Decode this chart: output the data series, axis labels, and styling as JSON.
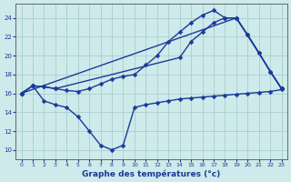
{
  "line_top": {
    "x": [
      0,
      1,
      2,
      3,
      4,
      5,
      6,
      7,
      8,
      9,
      10,
      11,
      12,
      13,
      14,
      15,
      16,
      17,
      18,
      19,
      20,
      21,
      22,
      23
    ],
    "y": [
      16.0,
      16.8,
      16.7,
      16.5,
      16.3,
      16.2,
      16.5,
      17.0,
      17.5,
      17.8,
      18.0,
      19.0,
      20.0,
      21.5,
      22.5,
      23.5,
      24.3,
      24.8,
      24.0,
      24.0,
      22.2,
      20.3,
      18.3,
      16.5
    ]
  },
  "line_mid": {
    "x": [
      0,
      1,
      2,
      3,
      14,
      15,
      16,
      17,
      18,
      19,
      20,
      21,
      22,
      23
    ],
    "y": [
      16.0,
      16.8,
      16.7,
      16.5,
      19.8,
      21.5,
      22.5,
      23.5,
      24.0,
      24.0,
      22.2,
      20.3,
      18.3,
      16.5
    ]
  },
  "line_diag": {
    "x": [
      0,
      19,
      23
    ],
    "y": [
      16.0,
      24.0,
      16.5
    ]
  },
  "line_bot": {
    "x": [
      0,
      1,
      2,
      3,
      4,
      5,
      6,
      7,
      8,
      9,
      10,
      11,
      12,
      13,
      14,
      15,
      16,
      17,
      18,
      19,
      20,
      21,
      22,
      23
    ],
    "y": [
      16.0,
      16.8,
      15.2,
      14.8,
      14.5,
      13.5,
      12.0,
      10.5,
      10.0,
      10.5,
      14.5,
      14.8,
      15.0,
      15.2,
      15.4,
      15.5,
      15.6,
      15.7,
      15.8,
      15.9,
      16.0,
      16.1,
      16.2,
      16.4
    ]
  },
  "xlabel": "Graphe des températures (°c)",
  "xlim": [
    -0.5,
    23.5
  ],
  "ylim": [
    9.0,
    25.5
  ],
  "yticks": [
    10,
    12,
    14,
    16,
    18,
    20,
    22,
    24
  ],
  "xticks": [
    0,
    1,
    2,
    3,
    4,
    5,
    6,
    7,
    8,
    9,
    10,
    11,
    12,
    13,
    14,
    15,
    16,
    17,
    18,
    19,
    20,
    21,
    22,
    23
  ],
  "bg_color": "#ceeaea",
  "grid_color": "#aacece",
  "line_color": "#1a3a9a",
  "xlabel_color": "#1a3a9a",
  "tick_color": "#1a3a9a"
}
